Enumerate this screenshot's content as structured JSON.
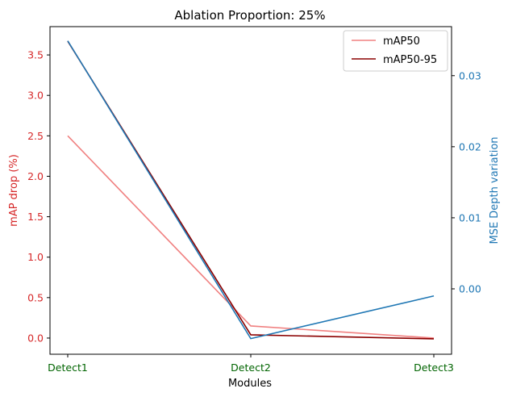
{
  "chart_data": {
    "type": "line",
    "title": "Ablation Proportion: 25%",
    "xlabel": "Modules",
    "categories": [
      "Detect1",
      "Detect2",
      "Detect3"
    ],
    "left_axis": {
      "label": "mAP drop (%)",
      "color": "#d62728",
      "ylim": [
        -0.2,
        3.85
      ],
      "ticks": [
        0.0,
        0.5,
        1.0,
        1.5,
        2.0,
        2.5,
        3.0,
        3.5
      ],
      "tick_labels": [
        "0.0",
        "0.5",
        "1.0",
        "1.5",
        "2.0",
        "2.5",
        "3.0",
        "3.5"
      ]
    },
    "right_axis": {
      "label": "MSE Depth variation",
      "color": "#1f77b4",
      "ylim": [
        -0.0092,
        0.0369
      ],
      "ticks": [
        0.0,
        0.01,
        0.02,
        0.03
      ],
      "tick_labels": [
        "0.00",
        "0.01",
        "0.02",
        "0.03"
      ]
    },
    "x_tick_color": "#006400",
    "series": [
      {
        "name": "mAP50",
        "axis": "left",
        "color": "#f08080",
        "values": [
          2.5,
          0.15,
          0.0
        ]
      },
      {
        "name": "mAP50-95",
        "axis": "left",
        "color": "#8b0000",
        "values": [
          3.67,
          0.04,
          -0.01
        ]
      },
      {
        "axis": "right",
        "color": "#1f77b4",
        "values": [
          0.0349,
          -0.007,
          -0.001
        ]
      }
    ],
    "legend": {
      "position": "top-right",
      "entries": [
        "mAP50",
        "mAP50-95"
      ]
    }
  }
}
